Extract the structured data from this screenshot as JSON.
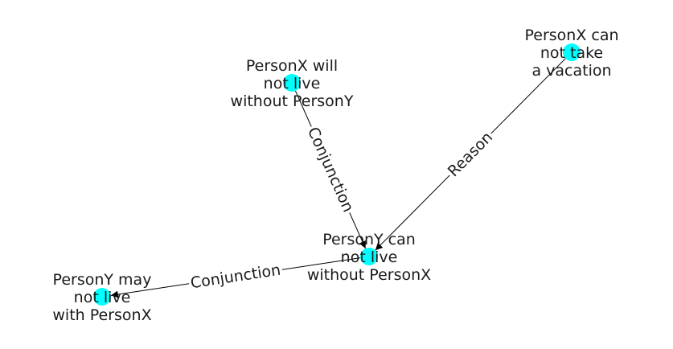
{
  "graph": {
    "node_color": "#00ffff",
    "edge_color": "#000000",
    "nodes": [
      {
        "id": "n1",
        "lines": [
          "PersonX can",
          "not take",
          "a vacation"
        ]
      },
      {
        "id": "n2",
        "lines": [
          "PersonX will",
          "not live",
          "without PersonY"
        ]
      },
      {
        "id": "n3",
        "lines": [
          "PersonY can",
          "not live",
          "without PersonX"
        ]
      },
      {
        "id": "n4",
        "lines": [
          "PersonY may",
          "not live",
          "with PersonX"
        ]
      }
    ],
    "edges": [
      {
        "source": "n2",
        "target": "n3",
        "label": "Conjunction"
      },
      {
        "source": "n1",
        "target": "n3",
        "label": "Reason"
      },
      {
        "source": "n3",
        "target": "n4",
        "label": "Conjunction"
      }
    ]
  }
}
